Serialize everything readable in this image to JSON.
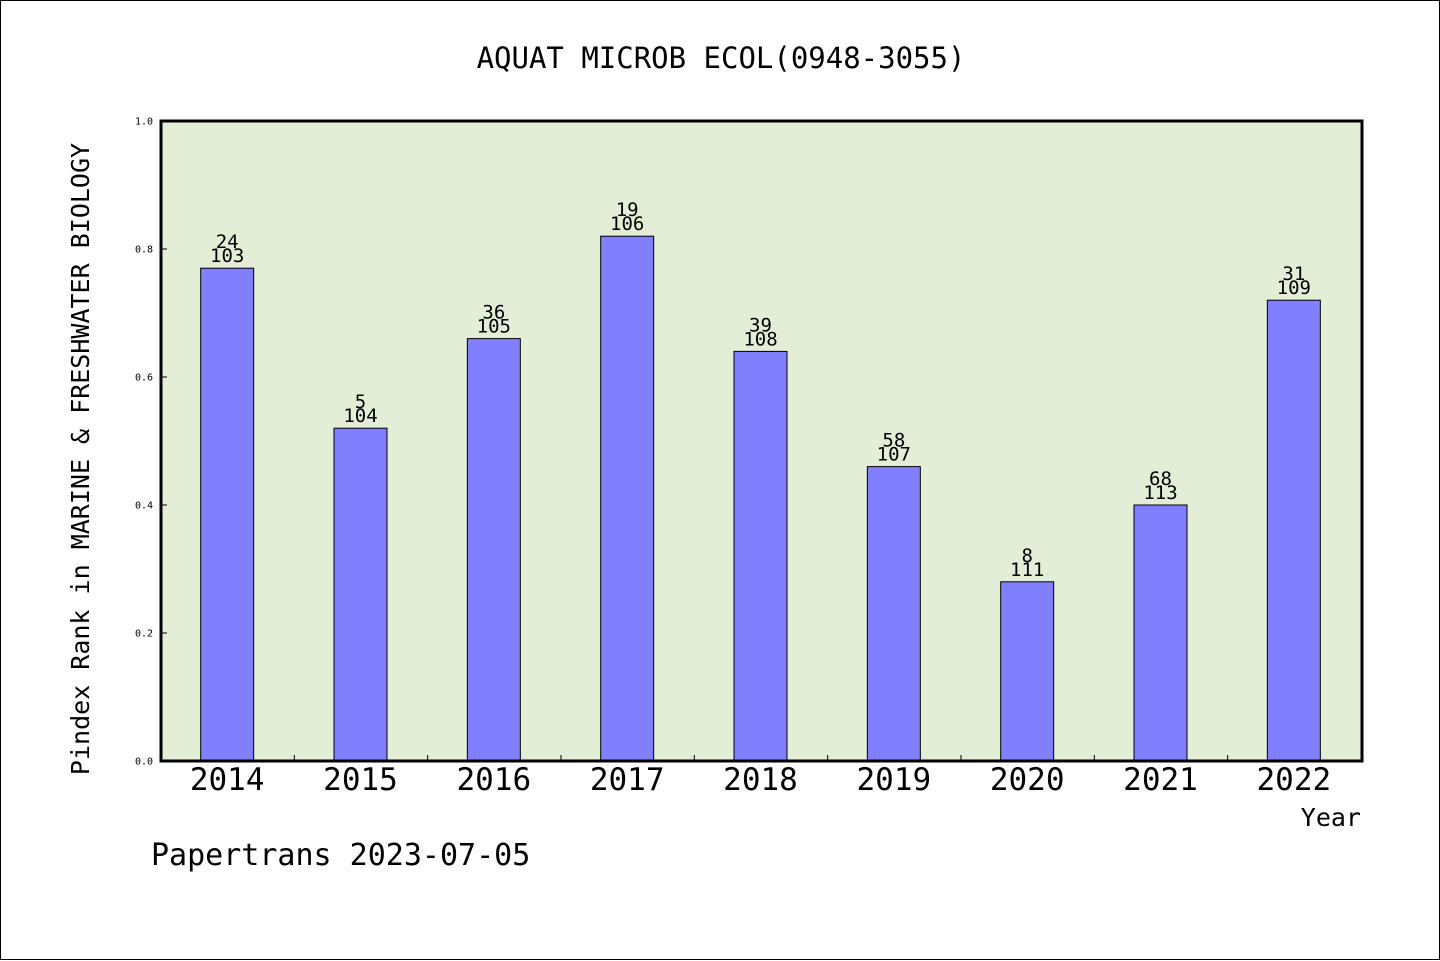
{
  "chart_data": {
    "type": "bar",
    "title": "AQUAT MICROB ECOL(0948-3055)",
    "xlabel": "Year",
    "ylabel": "Pindex Rank in MARINE & FRESHWATER BIOLOGY",
    "ylim": [
      0.0,
      1.0
    ],
    "yticks": [
      "0.0",
      "0.2",
      "0.4",
      "0.6",
      "0.8",
      "1.0"
    ],
    "categories": [
      "2014",
      "2015",
      "2016",
      "2017",
      "2018",
      "2019",
      "2020",
      "2021",
      "2022"
    ],
    "values": [
      0.77,
      0.52,
      0.66,
      0.82,
      0.64,
      0.46,
      0.28,
      0.4,
      0.72
    ],
    "label_rank": [
      "24",
      "5",
      "36",
      "19",
      "39",
      "58",
      "8",
      "68",
      "31"
    ],
    "label_total": [
      "103",
      "104",
      "105",
      "106",
      "108",
      "107",
      "111",
      "113",
      "109"
    ],
    "grid": false,
    "colors": {
      "bar": "#8080ff",
      "plot_background": "#e2efd6"
    }
  },
  "footer": {
    "text": "Papertrans 2023-07-05"
  }
}
